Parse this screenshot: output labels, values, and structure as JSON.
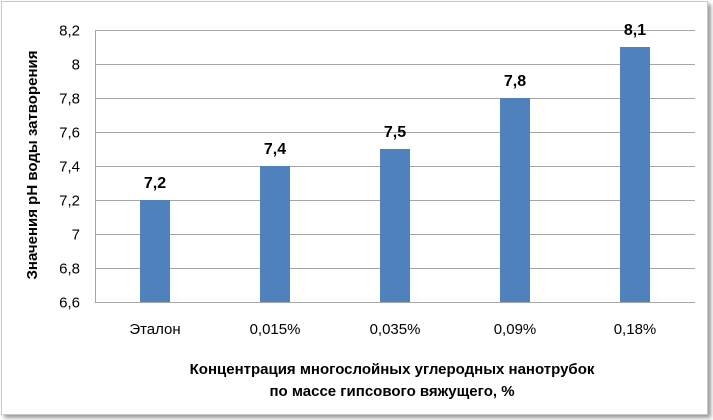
{
  "chart_data": {
    "type": "bar",
    "categories": [
      "Эталон",
      "0,015%",
      "0,035%",
      "0,09%",
      "0,18%"
    ],
    "values": [
      7.2,
      7.4,
      7.5,
      7.8,
      8.1
    ],
    "data_labels": [
      "7,2",
      "7,4",
      "7,5",
      "7,8",
      "8,1"
    ],
    "ylabel": "Значения рН воды затворения",
    "xlabel_lines": [
      "Концентрация многослойных углеродных нанотрубок",
      "по массе гипсового вяжущего, %"
    ],
    "ylim": [
      6.6,
      8.2
    ],
    "yticks": [
      6.6,
      6.8,
      7,
      7.2,
      7.4,
      7.6,
      7.8,
      8,
      8.2
    ],
    "ytick_labels": [
      "6,6",
      "6,8",
      "7",
      "7,2",
      "7,4",
      "7,6",
      "7,8",
      "8",
      "8,2"
    ],
    "grid": true,
    "bar_color": "#4f81bd",
    "grid_color": "#a6a6a6"
  }
}
